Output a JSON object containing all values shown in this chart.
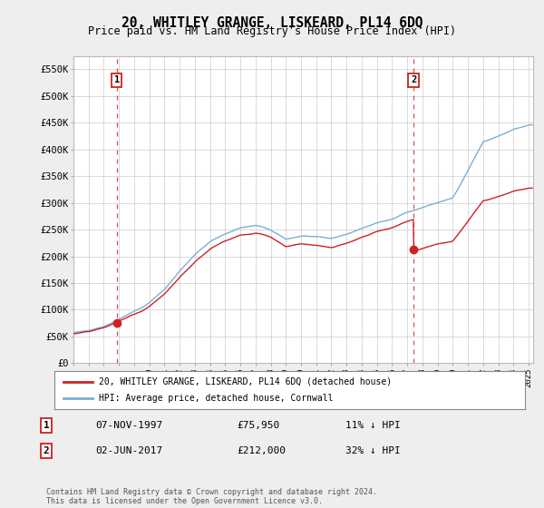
{
  "title": "20, WHITLEY GRANGE, LISKEARD, PL14 6DQ",
  "subtitle": "Price paid vs. HM Land Registry's House Price Index (HPI)",
  "xlim": [
    1995.0,
    2025.3
  ],
  "ylim": [
    0,
    575000
  ],
  "yticks": [
    0,
    50000,
    100000,
    150000,
    200000,
    250000,
    300000,
    350000,
    400000,
    450000,
    500000,
    550000
  ],
  "ytick_labels": [
    "£0",
    "£50K",
    "£100K",
    "£150K",
    "£200K",
    "£250K",
    "£300K",
    "£350K",
    "£400K",
    "£450K",
    "£500K",
    "£550K"
  ],
  "purchase1_x": 1997.85,
  "purchase1_y": 75950,
  "purchase1_label": "1",
  "purchase1_date": "07-NOV-1997",
  "purchase1_price": "£75,950",
  "purchase1_hpi": "11% ↓ HPI",
  "purchase2_x": 2017.42,
  "purchase2_y": 212000,
  "purchase2_label": "2",
  "purchase2_date": "02-JUN-2017",
  "purchase2_price": "£212,000",
  "purchase2_hpi": "32% ↓ HPI",
  "legend_line1": "20, WHITLEY GRANGE, LISKEARD, PL14 6DQ (detached house)",
  "legend_line2": "HPI: Average price, detached house, Cornwall",
  "footer": "Contains HM Land Registry data © Crown copyright and database right 2024.\nThis data is licensed under the Open Government Licence v3.0.",
  "hpi_color": "#7bafd4",
  "price_color": "#cc2222",
  "background_color": "#eeeeee",
  "plot_bg_color": "#ffffff",
  "grid_color": "#cccccc",
  "title_fontsize": 10.5,
  "subtitle_fontsize": 8.5,
  "axis_fontsize": 7.5
}
